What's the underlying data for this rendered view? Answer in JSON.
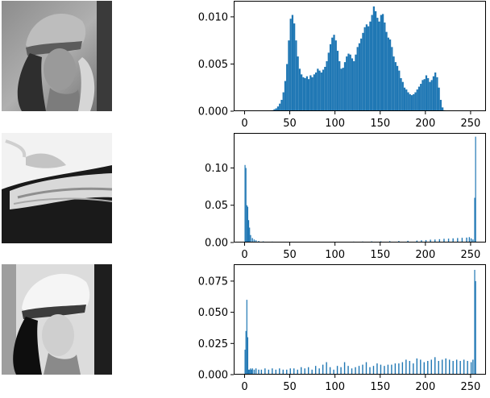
{
  "images": [
    {
      "subject": "woman-with-hat-grayscale"
    },
    {
      "subject": "woman-hair-rotated-high-contrast"
    },
    {
      "subject": "woman-with-hat-equalized"
    }
  ],
  "chart_data": [
    {
      "type": "bar",
      "title": "",
      "xlabel": "",
      "ylabel": "",
      "xlim": [
        -12,
        267
      ],
      "ylim": [
        0,
        0.0117
      ],
      "xticks": [
        0,
        50,
        100,
        150,
        200,
        250
      ],
      "yticks": [
        0.0,
        0.005,
        0.01
      ],
      "ytick_labels": [
        "0.000",
        "0.005",
        "0.010"
      ],
      "bar_color": "#1f77b4",
      "series": [
        {
          "x": [
            30,
            32,
            34,
            36,
            38,
            40,
            42,
            44,
            46,
            48,
            50,
            52,
            54,
            56,
            58,
            60,
            62,
            64,
            66,
            68,
            70,
            72,
            74,
            76,
            78,
            80,
            82,
            84,
            86,
            88,
            90,
            92,
            94,
            96,
            98,
            100,
            102,
            104,
            106,
            108,
            110,
            112,
            114,
            116,
            118,
            120,
            122,
            124,
            126,
            128,
            130,
            132,
            134,
            136,
            138,
            140,
            142,
            144,
            146,
            148,
            150,
            152,
            154,
            156,
            158,
            160,
            162,
            164,
            166,
            168,
            170,
            172,
            174,
            176,
            178,
            180,
            182,
            184,
            186,
            188,
            190,
            192,
            194,
            196,
            198,
            200,
            202,
            204,
            206,
            208,
            210,
            212,
            214,
            216,
            218,
            220,
            222
          ],
          "values": [
            0.0001,
            0.0002,
            0.0003,
            0.0005,
            0.0008,
            0.0012,
            0.002,
            0.0032,
            0.005,
            0.0075,
            0.0098,
            0.0102,
            0.0093,
            0.0075,
            0.0058,
            0.0045,
            0.0039,
            0.0036,
            0.0035,
            0.0037,
            0.0034,
            0.0038,
            0.0036,
            0.0039,
            0.0041,
            0.0045,
            0.0043,
            0.0041,
            0.0044,
            0.0047,
            0.0053,
            0.0062,
            0.0071,
            0.0078,
            0.0081,
            0.0075,
            0.0064,
            0.0053,
            0.0045,
            0.0046,
            0.0052,
            0.0058,
            0.0061,
            0.006,
            0.0056,
            0.0053,
            0.006,
            0.0068,
            0.0072,
            0.0077,
            0.0083,
            0.0089,
            0.0092,
            0.009,
            0.0095,
            0.0102,
            0.0111,
            0.0106,
            0.0099,
            0.0095,
            0.0102,
            0.0103,
            0.0094,
            0.0084,
            0.0078,
            0.0076,
            0.0068,
            0.0058,
            0.0052,
            0.0048,
            0.0043,
            0.0035,
            0.0031,
            0.0025,
            0.0023,
            0.002,
            0.0018,
            0.0017,
            0.0018,
            0.002,
            0.0023,
            0.0026,
            0.0029,
            0.0033,
            0.0034,
            0.0038,
            0.0035,
            0.0031,
            0.0033,
            0.0037,
            0.0041,
            0.0036,
            0.0025,
            0.0012,
            0.0004,
            0.0001,
            5e-05
          ]
        }
      ]
    },
    {
      "type": "bar",
      "title": "",
      "xlabel": "",
      "ylabel": "",
      "xlim": [
        -12,
        267
      ],
      "ylim": [
        0,
        0.147
      ],
      "xticks": [
        0,
        50,
        100,
        150,
        200,
        250
      ],
      "yticks": [
        0.0,
        0.05,
        0.1
      ],
      "ytick_labels": [
        "0.00",
        "0.05",
        "0.10"
      ],
      "bar_color": "#1f77b4",
      "series": [
        {
          "x": [
            0,
            1,
            2,
            3,
            4,
            5,
            6,
            8,
            10,
            12,
            15,
            20,
            30,
            40,
            50,
            60,
            70,
            80,
            90,
            100,
            110,
            120,
            130,
            140,
            150,
            160,
            170,
            180,
            190,
            195,
            200,
            205,
            210,
            215,
            220,
            225,
            230,
            235,
            240,
            245,
            248,
            250,
            252,
            254,
            255
          ],
          "values": [
            0.104,
            0.1,
            0.05,
            0.048,
            0.03,
            0.02,
            0.01,
            0.006,
            0.004,
            0.003,
            0.002,
            0.0015,
            0.0012,
            0.001,
            0.001,
            0.001,
            0.001,
            0.001,
            0.001,
            0.001,
            0.001,
            0.0012,
            0.0013,
            0.0015,
            0.0016,
            0.0018,
            0.002,
            0.0023,
            0.0026,
            0.003,
            0.0033,
            0.0038,
            0.004,
            0.0045,
            0.005,
            0.0052,
            0.0056,
            0.006,
            0.0063,
            0.0066,
            0.0072,
            0.0055,
            0.004,
            0.06,
            0.142
          ]
        }
      ]
    },
    {
      "type": "bar",
      "title": "",
      "xlabel": "",
      "ylabel": "",
      "xlim": [
        -12,
        267
      ],
      "ylim": [
        0,
        0.0885
      ],
      "xticks": [
        0,
        50,
        100,
        150,
        200,
        250
      ],
      "yticks": [
        0.0,
        0.025,
        0.05,
        0.075
      ],
      "ytick_labels": [
        "0.000",
        "0.025",
        "0.050",
        "0.075"
      ],
      "bar_color": "#1f77b4",
      "series": [
        {
          "x": [
            0,
            1,
            2,
            3,
            4,
            5,
            6,
            7,
            8,
            10,
            12,
            15,
            18,
            22,
            26,
            30,
            34,
            38,
            42,
            46,
            50,
            54,
            58,
            62,
            66,
            70,
            74,
            78,
            82,
            86,
            90,
            94,
            98,
            102,
            106,
            110,
            114,
            118,
            122,
            126,
            130,
            134,
            138,
            142,
            146,
            150,
            154,
            158,
            162,
            166,
            170,
            174,
            178,
            182,
            186,
            190,
            194,
            198,
            202,
            206,
            210,
            214,
            218,
            222,
            226,
            230,
            234,
            238,
            242,
            246,
            250,
            252,
            254,
            255
          ],
          "values": [
            0.02,
            0.035,
            0.06,
            0.03,
            0.004,
            0.004,
            0.005,
            0.004,
            0.005,
            0.004,
            0.005,
            0.004,
            0.004,
            0.005,
            0.004,
            0.005,
            0.004,
            0.005,
            0.004,
            0.004,
            0.005,
            0.005,
            0.004,
            0.006,
            0.005,
            0.006,
            0.004,
            0.007,
            0.005,
            0.008,
            0.01,
            0.006,
            0.004,
            0.007,
            0.006,
            0.01,
            0.007,
            0.005,
            0.006,
            0.007,
            0.008,
            0.01,
            0.006,
            0.007,
            0.009,
            0.008,
            0.007,
            0.008,
            0.008,
            0.009,
            0.009,
            0.01,
            0.012,
            0.011,
            0.009,
            0.013,
            0.012,
            0.01,
            0.011,
            0.012,
            0.014,
            0.011,
            0.012,
            0.013,
            0.012,
            0.011,
            0.012,
            0.011,
            0.012,
            0.011,
            0.01,
            0.012,
            0.084,
            0.075
          ]
        }
      ]
    }
  ]
}
